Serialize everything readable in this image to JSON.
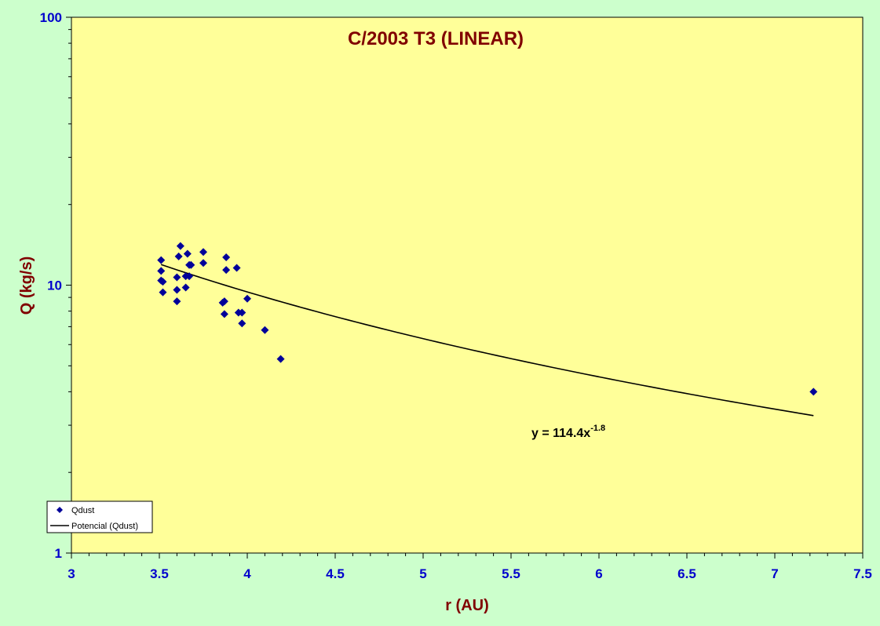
{
  "chart_data": {
    "type": "scatter",
    "title": "C/2003 T3 (LINEAR)",
    "xlabel": "r (AU)",
    "ylabel": "Q (kg/s)",
    "xlim": [
      3,
      7.5
    ],
    "ylim": [
      1,
      100
    ],
    "y_scale": "log",
    "x_ticks": [
      "3",
      "3.5",
      "4",
      "4.5",
      "5",
      "5.5",
      "6",
      "6.5",
      "7",
      "7.5"
    ],
    "x_tick_values": [
      3,
      3.5,
      4,
      4.5,
      5,
      5.5,
      6,
      6.5,
      7,
      7.5
    ],
    "y_ticks": [
      "1",
      "10",
      "100"
    ],
    "y_tick_values": [
      1,
      10,
      100
    ],
    "grid": false,
    "legend_position": "bottom-left",
    "series": [
      {
        "name": "Qdust",
        "kind": "scatter",
        "marker": "diamond",
        "color": "#000099",
        "points": [
          {
            "x": 3.51,
            "y": 12.4
          },
          {
            "x": 3.51,
            "y": 11.3
          },
          {
            "x": 3.51,
            "y": 10.4
          },
          {
            "x": 3.52,
            "y": 10.3
          },
          {
            "x": 3.52,
            "y": 9.4
          },
          {
            "x": 3.6,
            "y": 10.7
          },
          {
            "x": 3.6,
            "y": 9.6
          },
          {
            "x": 3.6,
            "y": 8.7
          },
          {
            "x": 3.61,
            "y": 12.8
          },
          {
            "x": 3.62,
            "y": 14.0
          },
          {
            "x": 3.65,
            "y": 10.8
          },
          {
            "x": 3.65,
            "y": 9.8
          },
          {
            "x": 3.66,
            "y": 13.1
          },
          {
            "x": 3.67,
            "y": 11.9
          },
          {
            "x": 3.68,
            "y": 11.9
          },
          {
            "x": 3.67,
            "y": 10.8
          },
          {
            "x": 3.75,
            "y": 13.3
          },
          {
            "x": 3.75,
            "y": 12.1
          },
          {
            "x": 3.86,
            "y": 8.6
          },
          {
            "x": 3.87,
            "y": 8.7
          },
          {
            "x": 3.87,
            "y": 7.8
          },
          {
            "x": 3.88,
            "y": 12.7
          },
          {
            "x": 3.88,
            "y": 11.4
          },
          {
            "x": 3.94,
            "y": 11.6
          },
          {
            "x": 3.95,
            "y": 7.9
          },
          {
            "x": 3.97,
            "y": 7.9
          },
          {
            "x": 3.97,
            "y": 7.2
          },
          {
            "x": 4.0,
            "y": 8.9
          },
          {
            "x": 4.1,
            "y": 6.8
          },
          {
            "x": 4.19,
            "y": 5.3
          },
          {
            "x": 7.22,
            "y": 4.0
          }
        ]
      },
      {
        "name": "Potencial (Qdust)",
        "kind": "trendline",
        "color": "#000000",
        "model": "power",
        "coefficient": 114.4,
        "exponent": -1.8,
        "x_range": [
          3.51,
          7.22
        ]
      }
    ],
    "annotation": {
      "prefix": "y = 114.4x",
      "exponent": "-1.8"
    }
  },
  "colors": {
    "background": "#ccffcc",
    "plot_area": "#ffff99",
    "title": "#800000",
    "axis_label": "#800000",
    "tick_label": "#0000cc",
    "marker": "#000099"
  }
}
